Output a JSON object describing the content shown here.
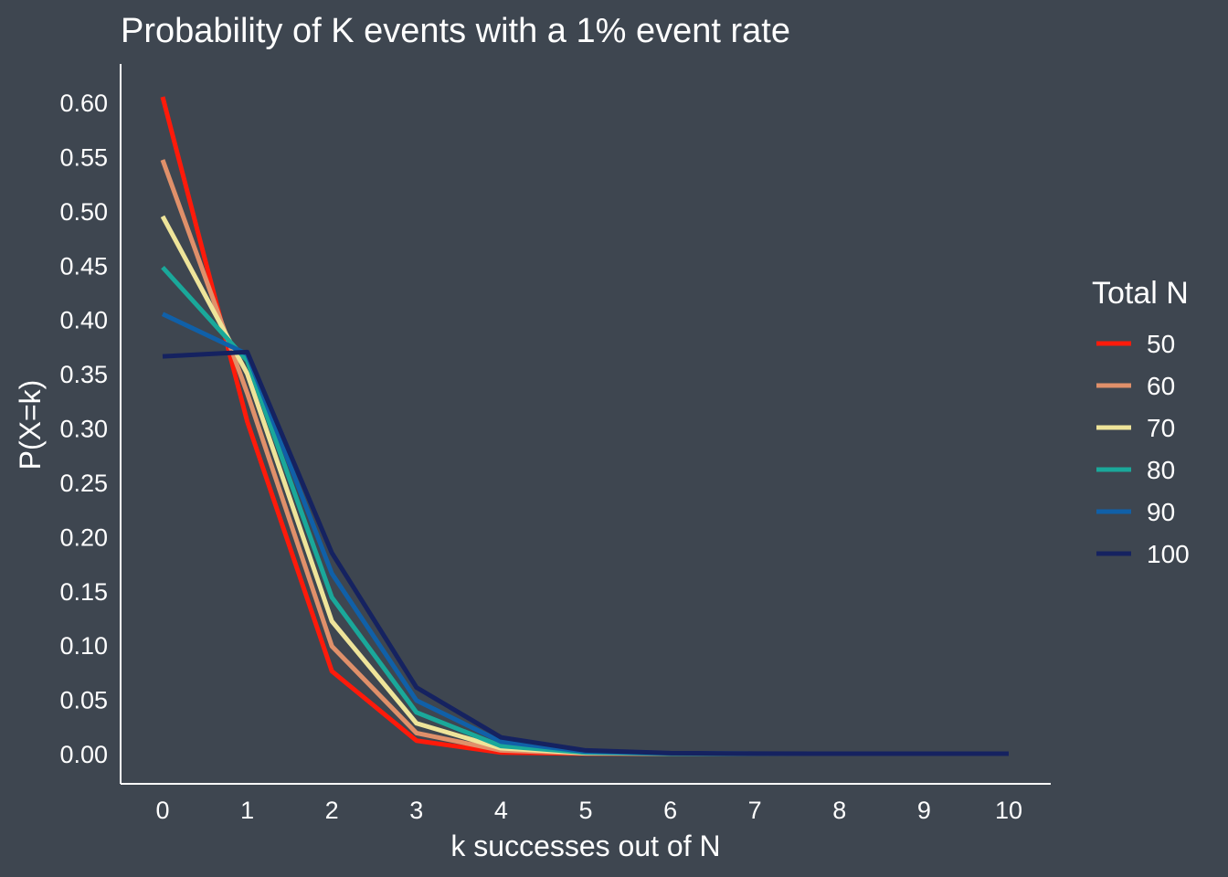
{
  "chart_data": {
    "type": "line",
    "title": "Probability of K events with a 1% event rate",
    "xlabel": "k successes out of N",
    "ylabel": "P(X=k)",
    "x": [
      0,
      1,
      2,
      3,
      4,
      5,
      6,
      7,
      8,
      9,
      10
    ],
    "xlim": [
      0,
      10
    ],
    "ylim": [
      0,
      0.6
    ],
    "y_ticks": [
      "0.00",
      "0.05",
      "0.10",
      "0.15",
      "0.20",
      "0.25",
      "0.30",
      "0.35",
      "0.40",
      "0.45",
      "0.50",
      "0.55",
      "0.60"
    ],
    "x_ticks": [
      "0",
      "1",
      "2",
      "3",
      "4",
      "5",
      "6",
      "7",
      "8",
      "9",
      "10"
    ],
    "grid": false,
    "legend_title": "Total N",
    "legend_position": "right",
    "series": [
      {
        "name": "50",
        "color": "#ff1a0a",
        "values": [
          0.605,
          0.306,
          0.076,
          0.012,
          0.001,
          0.0001,
          0,
          0,
          0,
          0,
          0
        ]
      },
      {
        "name": "60",
        "color": "#e0906a",
        "values": [
          0.547,
          0.332,
          0.099,
          0.019,
          0.003,
          0.0003,
          0,
          0,
          0,
          0,
          0
        ]
      },
      {
        "name": "70",
        "color": "#eee49a",
        "values": [
          0.495,
          0.35,
          0.122,
          0.028,
          0.005,
          0.0006,
          0.0001,
          0,
          0,
          0,
          0
        ]
      },
      {
        "name": "80",
        "color": "#1aa89a",
        "values": [
          0.448,
          0.362,
          0.144,
          0.038,
          0.007,
          0.001,
          0.0001,
          0,
          0,
          0,
          0
        ]
      },
      {
        "name": "90",
        "color": "#1060a8",
        "values": [
          0.405,
          0.368,
          0.166,
          0.049,
          0.011,
          0.002,
          0.0003,
          0,
          0,
          0,
          0
        ]
      },
      {
        "name": "100",
        "color": "#152260",
        "values": [
          0.366,
          0.37,
          0.185,
          0.061,
          0.015,
          0.003,
          0.0005,
          0.0001,
          0,
          0,
          0
        ]
      }
    ]
  }
}
